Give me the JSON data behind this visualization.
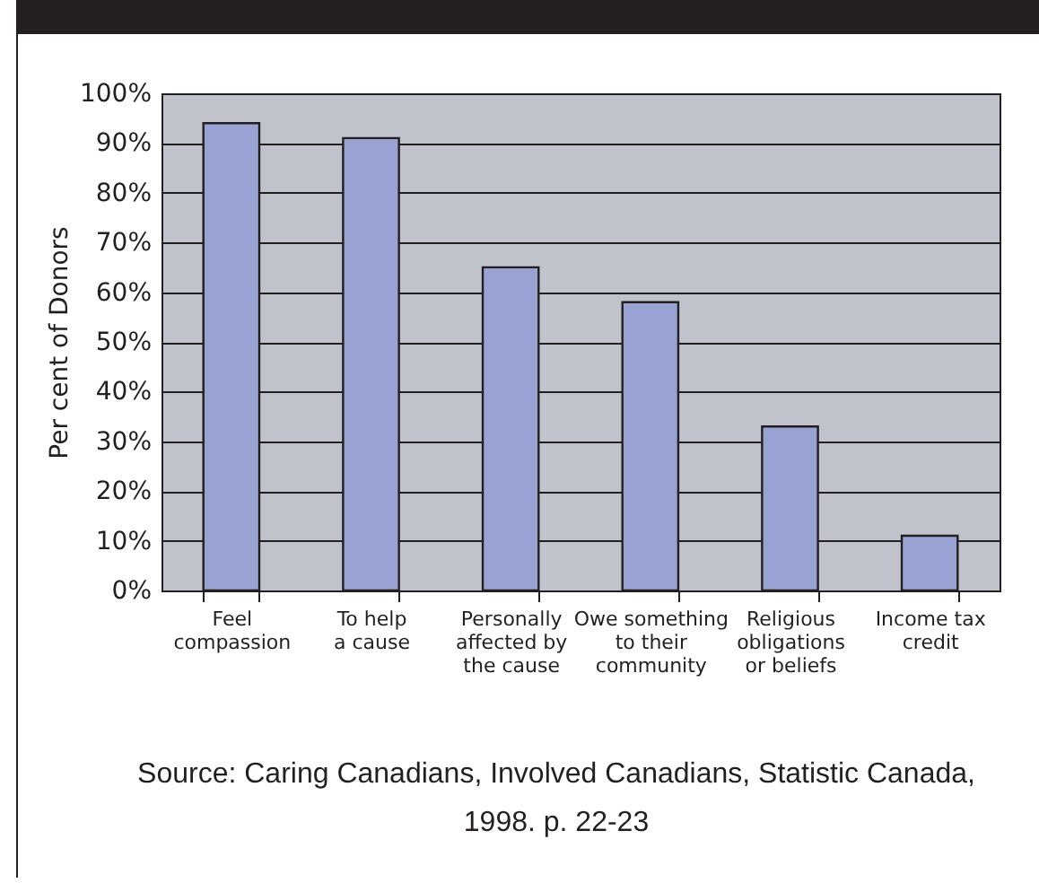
{
  "chart_data": {
    "type": "bar",
    "ylabel": "Per cent of Donors",
    "categories": [
      "Feel\ncompassion",
      "To help\na cause",
      "Personally\naffected by\nthe cause",
      "Owe something\nto their\ncommunity",
      "Religious\nobligations\nor beliefs",
      "Income tax\ncredit"
    ],
    "values": [
      94,
      91,
      65,
      58,
      33,
      11
    ],
    "color": "#99a3d3",
    "ylim": [
      0,
      100
    ],
    "yticks": [
      {
        "value": 0,
        "label": "0%"
      },
      {
        "value": 10,
        "label": "10%"
      },
      {
        "value": 20,
        "label": "20%"
      },
      {
        "value": 30,
        "label": "30%"
      },
      {
        "value": 40,
        "label": "40%"
      },
      {
        "value": 50,
        "label": "50%"
      },
      {
        "value": 60,
        "label": "60%"
      },
      {
        "value": 70,
        "label": "70%"
      },
      {
        "value": 80,
        "label": "80%"
      },
      {
        "value": 90,
        "label": "90%"
      },
      {
        "value": 100,
        "label": "100%"
      }
    ],
    "grid": "y",
    "annotations": [
      "Source: Caring Canadians, Involved Canadians, Statistic Canada, 1998. p. 22-23"
    ]
  }
}
